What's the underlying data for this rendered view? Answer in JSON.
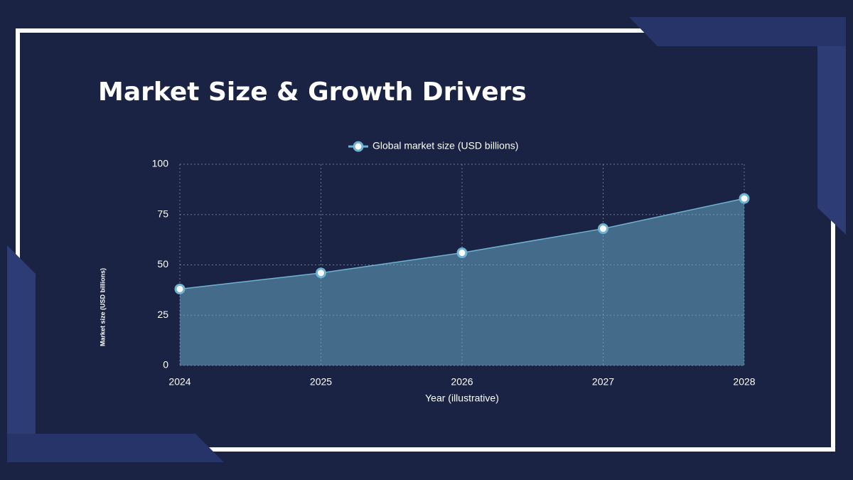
{
  "chart_data": {
    "type": "area",
    "title": "Market Size & Growth Drivers",
    "x": [
      2024,
      2025,
      2026,
      2027,
      2028
    ],
    "series": [
      {
        "name": "Global market size (USD billions)",
        "color": "#6fb3d2",
        "values": [
          38,
          46,
          56,
          68,
          83
        ]
      }
    ],
    "xlim": [
      2024,
      2028
    ],
    "xticks": [
      2024,
      2025,
      2026,
      2027,
      2028
    ],
    "ylim": [
      0,
      100
    ],
    "yticks": [
      0,
      25,
      50,
      75,
      100
    ],
    "x_label": "Year (illustrative)",
    "y_label": "Market size (USD billions)",
    "grid": true,
    "legend": "top"
  }
}
